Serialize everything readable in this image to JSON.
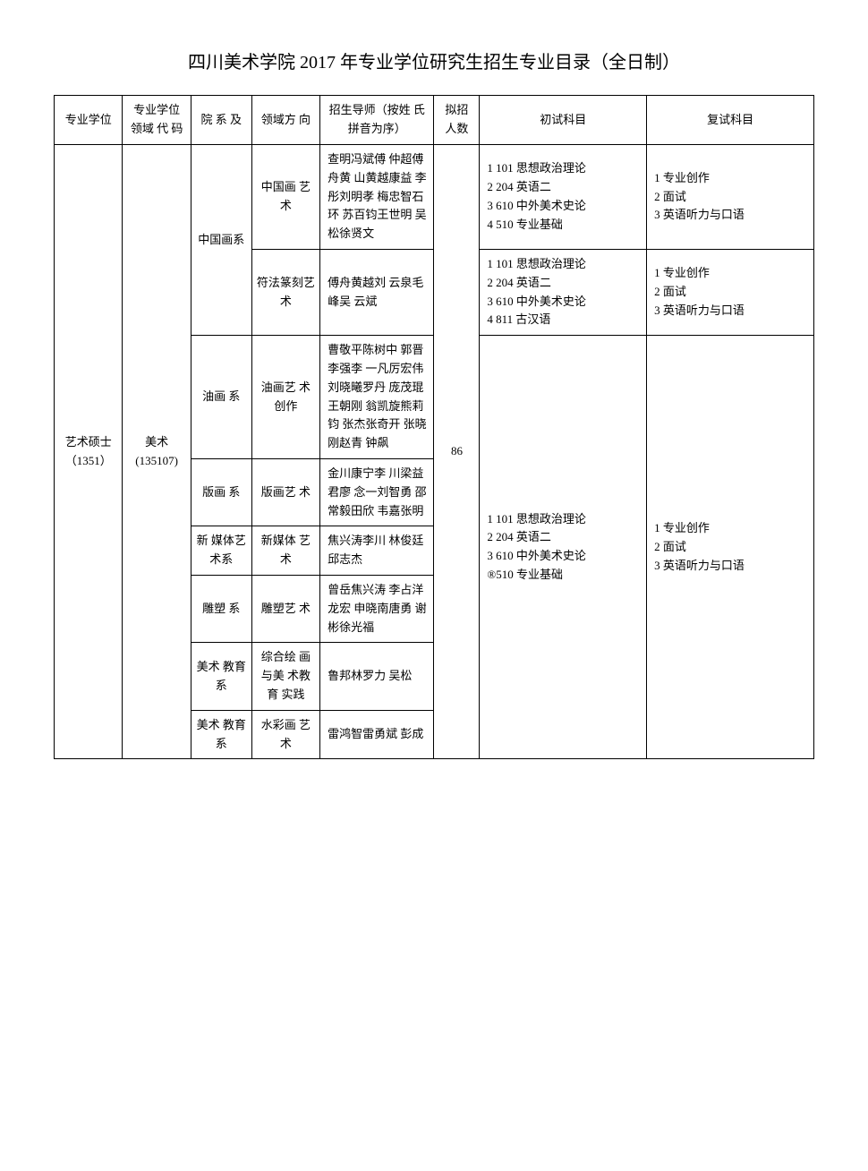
{
  "title": "四川美术学院 2017 年专业学位研究生招生专业目录（全日制）",
  "headers": {
    "col1": "专业学位",
    "col2": "专业学位 领域 代 码",
    "col3": "院 系 及",
    "col4": "领域方 向",
    "col5": "招生导师（按姓 氏拼音为序）",
    "col6": "拟招 人数",
    "col7": "初试科目",
    "col8": "复试科目"
  },
  "degree": "艺术硕士（1351）",
  "field_code": "美术 (135107)",
  "quota": "86",
  "rows": [
    {
      "dept": "中国画系",
      "direction": "中国画 艺术",
      "advisors": "查明冯斌傅 仲超傅舟黄 山黄越康益 李彤刘明孝 梅忠智石环 苏百钧王世明 吴松徐贤文",
      "prelim": "1  101 思想政治理论\n2     204 英语二\n3     610 中外美术史论\n4     510 专业基础",
      "retest": "1 专业创作\n2 面试\n3 英语听力与口语"
    },
    {
      "direction": "符法篆刻艺术",
      "advisors": "傅舟黄越刘 云泉毛峰吴 云斌",
      "prelim": "1 101 思想政治理论\n2     204 英语二\n3     610 中外美术史论\n4     811 古汉语",
      "retest": "1 专业创作\n2 面试\n3 英语听力与口语"
    },
    {
      "dept": "油画 系",
      "direction": "油画艺 术创作",
      "advisors": "曹敬平陈树中 郭晋李强李 一凡厉宏伟 刘晓曦罗丹 庞茂琨王朝刚 翁凯旋熊莉钧 张杰张奇开 张晓刚赵青 钟飙"
    },
    {
      "dept": "版画 系",
      "direction": "版画艺 术",
      "advisors": "金川康宁李 川梁益君廖 念一刘智勇 邵常毅田欣 韦嘉张明"
    },
    {
      "dept": "新 媒体艺术系",
      "direction": "新媒体 艺术",
      "advisors": "焦兴涛李川 林俊廷邱志杰"
    },
    {
      "dept": "雕塑 系",
      "direction": "雕塑艺 术",
      "advisors": "曾岳焦兴涛 李占洋龙宏 申晓南唐勇 谢彬徐光福"
    },
    {
      "dept": "美术 教育 系",
      "direction": "综合绘 画与美 术教育 实践",
      "advisors": "鲁邦林罗力 吴松"
    },
    {
      "dept": "美术 教育 系",
      "direction": "水彩画 艺术",
      "advisors": "雷鸿智雷勇斌 彭成"
    }
  ],
  "shared_prelim": "1  101 思想政治理论\n2     204 英语二\n3     610 中外美术史论\n®510 专业基础",
  "shared_retest": "1 专业创作\n2 面试\n3 英语听力与口语"
}
